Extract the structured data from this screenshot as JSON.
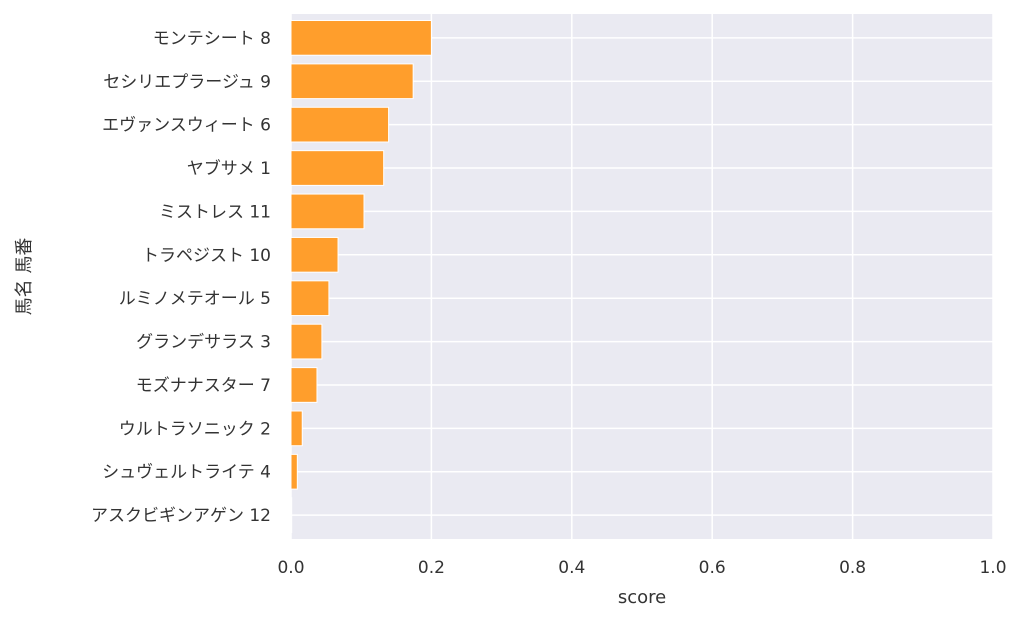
{
  "chart_data": {
    "type": "bar",
    "orientation": "horizontal",
    "categories": [
      "モンテシート 8",
      "セシリエプラージュ 9",
      "エヴァンスウィート 6",
      "ヤブサメ 1",
      "ミストレス 11",
      "トラペジスト 10",
      "ルミノメテオール 5",
      "グランデサラス 3",
      "モズナナスター 7",
      "ウルトラソニック 2",
      "シュヴェルトライテ 4",
      "アスクビギンアゲン 12"
    ],
    "values": [
      0.2,
      0.174,
      0.139,
      0.132,
      0.104,
      0.067,
      0.054,
      0.044,
      0.037,
      0.016,
      0.009,
      0.001
    ],
    "xlabel": "score",
    "ylabel": "馬名 馬番",
    "xlim": [
      0,
      1
    ],
    "xticks": [
      "0.0",
      "0.2",
      "0.4",
      "0.6",
      "0.8",
      "1.0"
    ],
    "grid": true,
    "bar_color": "#ff9e2c",
    "background_color": "#eaeaf2"
  }
}
